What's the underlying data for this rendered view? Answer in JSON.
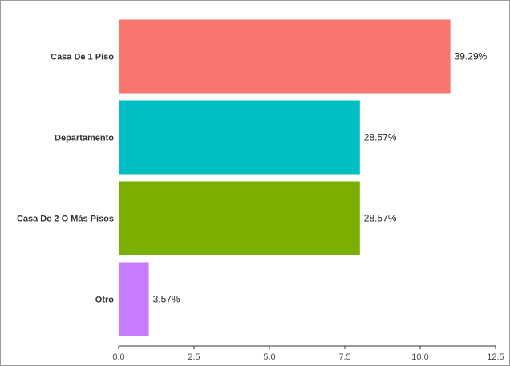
{
  "chart_data": {
    "type": "bar",
    "orientation": "horizontal",
    "categories": [
      "Casa De 1 Piso",
      "Departamento",
      "Casa De 2 O Más Pisos",
      "Otro"
    ],
    "values": [
      11,
      8,
      8,
      1
    ],
    "labels": [
      "39.29%",
      "28.57%",
      "28.57%",
      "3.57%"
    ],
    "colors": [
      "#f8766d",
      "#00bfc4",
      "#7cae00",
      "#c77cff"
    ],
    "xlim": [
      0,
      12.5
    ],
    "x_ticks": [
      "0.0",
      "2.5",
      "5.0",
      "7.5",
      "10.0",
      "12.5"
    ],
    "x_tick_values": [
      0,
      2.5,
      5,
      7.5,
      10,
      12.5
    ],
    "grid": false,
    "legend": "none",
    "title": "",
    "xlabel": "",
    "ylabel": ""
  }
}
